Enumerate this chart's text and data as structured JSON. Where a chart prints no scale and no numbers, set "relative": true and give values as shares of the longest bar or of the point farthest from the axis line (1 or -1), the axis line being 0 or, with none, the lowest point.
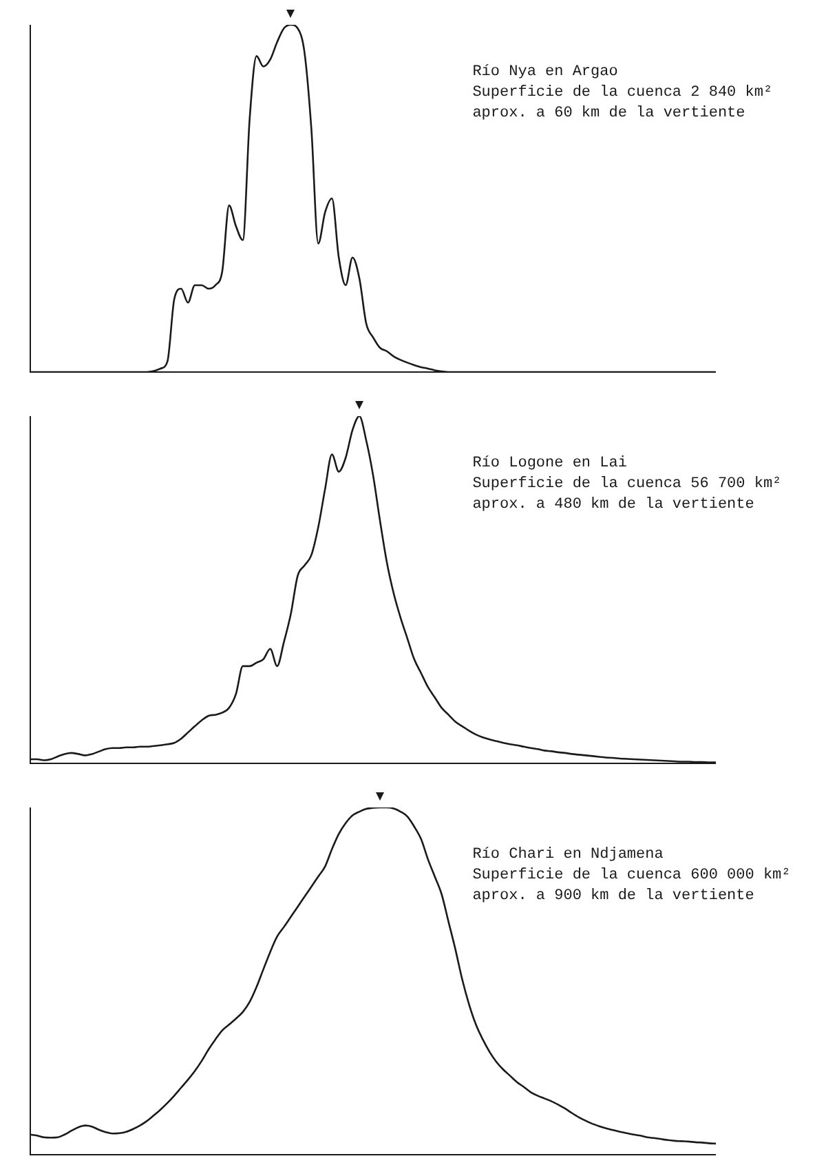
{
  "chart_data": [
    {
      "type": "line",
      "title": "Río Nya en Argao",
      "annotations": [
        "Superficie de la cuenca 2 840 km²",
        "aprox. a 60 km de la vertiente"
      ],
      "relative": true,
      "tick_labels": false,
      "marker": "none",
      "color": "#1a1a1a",
      "categories": [
        null,
        null,
        null,
        null,
        null,
        null,
        null,
        null,
        null,
        null,
        null,
        null,
        null,
        null,
        null,
        null,
        null,
        null,
        null,
        null,
        null,
        null,
        null,
        null,
        null,
        null,
        null,
        null,
        null,
        null,
        null,
        null,
        null,
        null,
        null,
        null,
        null,
        null,
        null,
        null,
        null,
        null,
        null,
        null,
        null,
        null,
        null,
        null,
        null,
        null,
        null,
        null,
        null,
        null,
        null,
        null,
        null,
        null,
        null,
        null,
        null,
        null,
        null,
        null,
        null,
        null,
        null,
        null,
        null,
        null,
        null,
        null,
        null,
        null,
        null,
        null,
        null,
        null,
        null,
        null,
        null,
        null,
        null,
        null,
        null,
        null,
        null,
        null,
        null,
        null,
        null,
        null,
        null,
        null,
        null,
        null,
        null,
        null,
        null,
        null,
        null
      ],
      "values": [
        0,
        0,
        0,
        0,
        0,
        0,
        0,
        0,
        0,
        0,
        0,
        0,
        0,
        0,
        0,
        0,
        0,
        0,
        0.003,
        0.01,
        0.03,
        0.21,
        0.24,
        0.2,
        0.25,
        0.25,
        0.24,
        0.25,
        0.29,
        0.48,
        0.42,
        0.38,
        0.73,
        0.91,
        0.88,
        0.9,
        0.95,
        0.99,
        1,
        0.99,
        0.92,
        0.7,
        0.37,
        0.46,
        0.5,
        0.33,
        0.25,
        0.33,
        0.27,
        0.14,
        0.1,
        0.07,
        0.06,
        0.045,
        0.035,
        0.027,
        0.02,
        0.014,
        0.01,
        0.005,
        0.002,
        0,
        0,
        0,
        0,
        0,
        0,
        0,
        0,
        0,
        0,
        0,
        0,
        0,
        0,
        0,
        0,
        0,
        0,
        0,
        0,
        0,
        0,
        0,
        0,
        0,
        0,
        0,
        0,
        0,
        0,
        0,
        0,
        0,
        0,
        0,
        0,
        0,
        0,
        0,
        0
      ]
    },
    {
      "type": "line",
      "title": "Río Logone en Lai",
      "annotations": [
        "Superficie de la cuenca 56 700 km²",
        "aprox. a 480 km de la vertiente"
      ],
      "relative": true,
      "tick_labels": false,
      "marker": "none",
      "color": "#1a1a1a",
      "categories": [
        null,
        null,
        null,
        null,
        null,
        null,
        null,
        null,
        null,
        null,
        null,
        null,
        null,
        null,
        null,
        null,
        null,
        null,
        null,
        null,
        null,
        null,
        null,
        null,
        null,
        null,
        null,
        null,
        null,
        null,
        null,
        null,
        null,
        null,
        null,
        null,
        null,
        null,
        null,
        null,
        null,
        null,
        null,
        null,
        null,
        null,
        null,
        null,
        null,
        null,
        null,
        null,
        null,
        null,
        null,
        null,
        null,
        null,
        null,
        null,
        null,
        null,
        null,
        null,
        null,
        null,
        null,
        null,
        null,
        null,
        null,
        null,
        null,
        null,
        null,
        null,
        null,
        null,
        null,
        null,
        null,
        null,
        null,
        null,
        null,
        null,
        null,
        null,
        null,
        null,
        null,
        null,
        null,
        null,
        null,
        null,
        null,
        null,
        null,
        null,
        null
      ],
      "values": [
        0.012,
        0.012,
        0.009,
        0.012,
        0.02,
        0.027,
        0.03,
        0.027,
        0.023,
        0.027,
        0.034,
        0.041,
        0.044,
        0.044,
        0.046,
        0.046,
        0.048,
        0.048,
        0.05,
        0.052,
        0.055,
        0.059,
        0.071,
        0.089,
        0.107,
        0.124,
        0.137,
        0.14,
        0.146,
        0.16,
        0.2,
        0.28,
        0.28,
        0.29,
        0.3,
        0.33,
        0.28,
        0.35,
        0.43,
        0.54,
        0.57,
        0.6,
        0.68,
        0.79,
        0.89,
        0.84,
        0.88,
        0.96,
        1,
        0.93,
        0.83,
        0.7,
        0.58,
        0.49,
        0.42,
        0.36,
        0.3,
        0.26,
        0.22,
        0.19,
        0.16,
        0.14,
        0.12,
        0.107,
        0.094,
        0.083,
        0.075,
        0.069,
        0.064,
        0.059,
        0.055,
        0.052,
        0.048,
        0.044,
        0.041,
        0.037,
        0.035,
        0.032,
        0.03,
        0.027,
        0.025,
        0.023,
        0.021,
        0.019,
        0.017,
        0.016,
        0.014,
        0.013,
        0.012,
        0.011,
        0.01,
        0.009,
        0.008,
        0.007,
        0.006,
        0.005,
        0.005,
        0.004,
        0.004,
        0.003,
        0.003
      ]
    },
    {
      "type": "line",
      "title": "Río Chari en Ndjamena",
      "annotations": [
        "Superficie de la cuenca 600 000 km²",
        "aprox. a 900 km de la vertiente"
      ],
      "relative": true,
      "tick_labels": false,
      "marker": "none",
      "color": "#1a1a1a",
      "categories": [
        null,
        null,
        null,
        null,
        null,
        null,
        null,
        null,
        null,
        null,
        null,
        null,
        null,
        null,
        null,
        null,
        null,
        null,
        null,
        null,
        null,
        null,
        null,
        null,
        null,
        null,
        null,
        null,
        null,
        null,
        null,
        null,
        null,
        null,
        null,
        null,
        null,
        null,
        null,
        null,
        null,
        null,
        null,
        null,
        null,
        null,
        null,
        null,
        null,
        null,
        null,
        null,
        null,
        null,
        null,
        null,
        null,
        null,
        null,
        null,
        null,
        null,
        null,
        null,
        null,
        null,
        null,
        null,
        null,
        null,
        null,
        null,
        null,
        null,
        null,
        null,
        null,
        null,
        null,
        null,
        null,
        null,
        null,
        null,
        null,
        null,
        null,
        null,
        null,
        null,
        null,
        null,
        null,
        null,
        null,
        null,
        null,
        null,
        null,
        null,
        null
      ],
      "values": [
        0.058,
        0.055,
        0.05,
        0.049,
        0.05,
        0.058,
        0.069,
        0.079,
        0.084,
        0.081,
        0.072,
        0.065,
        0.061,
        0.062,
        0.066,
        0.074,
        0.084,
        0.097,
        0.113,
        0.13,
        0.149,
        0.17,
        0.193,
        0.216,
        0.241,
        0.27,
        0.303,
        0.332,
        0.358,
        0.375,
        0.392,
        0.411,
        0.44,
        0.483,
        0.534,
        0.584,
        0.628,
        0.656,
        0.685,
        0.714,
        0.743,
        0.772,
        0.801,
        0.83,
        0.88,
        0.924,
        0.955,
        0.977,
        0.988,
        0.996,
        0.999,
        1,
        1,
        0.997,
        0.988,
        0.974,
        0.945,
        0.909,
        0.851,
        0.801,
        0.75,
        0.671,
        0.592,
        0.505,
        0.433,
        0.375,
        0.332,
        0.296,
        0.267,
        0.245,
        0.227,
        0.209,
        0.195,
        0.18,
        0.17,
        0.162,
        0.154,
        0.144,
        0.133,
        0.12,
        0.108,
        0.098,
        0.089,
        0.082,
        0.076,
        0.071,
        0.066,
        0.062,
        0.058,
        0.055,
        0.05,
        0.048,
        0.045,
        0.042,
        0.04,
        0.039,
        0.038,
        0.036,
        0.035,
        0.033,
        0.032
      ]
    }
  ]
}
